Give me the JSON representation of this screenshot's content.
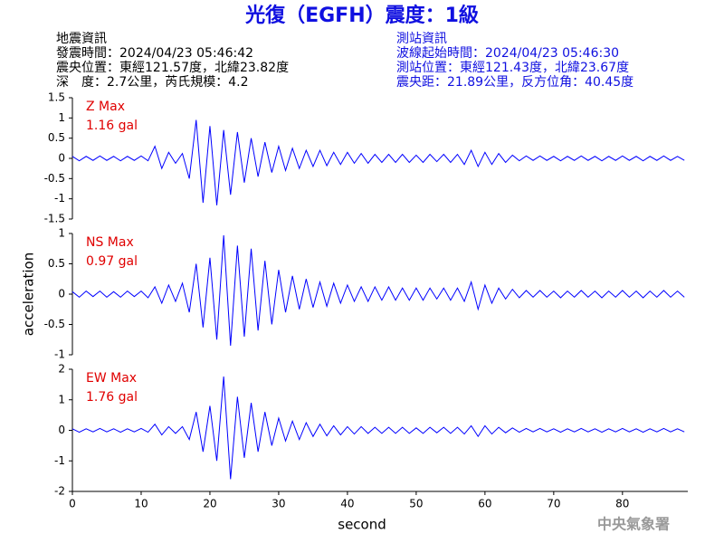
{
  "header": {
    "title": "光復（EGFH）震度：1級",
    "left": [
      "地震資訊",
      "發震時間：2024/04/23 05:46:42",
      "震央位置：東經121.57度，北緯23.82度",
      "深　度：2.7公里，芮氏規模：4.2"
    ],
    "right": [
      "測站資訊",
      "波線起始時間：2024/04/23 05:46:30",
      "測站位置：東經121.43度，北緯23.67度",
      "震央距：21.89公里，反方位角：40.45度"
    ]
  },
  "watermark": "中央氣象署",
  "chart_data": [
    {
      "type": "line",
      "annotations": [
        "Z Max",
        "1.16 gal"
      ],
      "xlim": [
        0,
        89.5
      ],
      "ylim": [
        -1.5,
        1.5
      ],
      "yticks": [
        -1.5,
        -1,
        -0.5,
        0,
        0.5,
        1,
        1.5
      ],
      "x": [
        0,
        1,
        2,
        3,
        4,
        5,
        6,
        7,
        8,
        9,
        10,
        11,
        12,
        13,
        14,
        15,
        16,
        17,
        18,
        19,
        20,
        21,
        22,
        23,
        24,
        25,
        26,
        27,
        28,
        29,
        30,
        31,
        32,
        33,
        34,
        35,
        36,
        37,
        38,
        39,
        40,
        41,
        42,
        43,
        44,
        45,
        46,
        47,
        48,
        49,
        50,
        51,
        52,
        53,
        54,
        55,
        56,
        57,
        58,
        59,
        60,
        61,
        62,
        63,
        64,
        65,
        66,
        67,
        68,
        69,
        70,
        71,
        72,
        73,
        74,
        75,
        76,
        77,
        78,
        79,
        80,
        81,
        82,
        83,
        84,
        85,
        86,
        87,
        88,
        89
      ],
      "series": [
        {
          "color": "#0000ff",
          "values": [
            0.05,
            -0.06,
            0.05,
            -0.05,
            0.06,
            -0.05,
            0.05,
            -0.06,
            0.05,
            -0.05,
            0.06,
            -0.06,
            0.3,
            -0.25,
            0.15,
            -0.12,
            0.12,
            -0.5,
            0.95,
            -1.1,
            0.8,
            -1.16,
            0.7,
            -0.9,
            0.65,
            -0.6,
            0.5,
            -0.45,
            0.4,
            -0.35,
            0.3,
            -0.3,
            0.25,
            -0.25,
            0.2,
            -0.2,
            0.2,
            -0.18,
            0.15,
            -0.15,
            0.15,
            -0.12,
            0.12,
            -0.12,
            0.1,
            -0.1,
            0.1,
            -0.1,
            0.1,
            -0.1,
            0.08,
            -0.1,
            0.1,
            -0.08,
            0.1,
            -0.1,
            0.1,
            -0.15,
            0.2,
            -0.2,
            0.15,
            -0.15,
            0.12,
            -0.1,
            0.08,
            -0.06,
            0.06,
            -0.05,
            0.06,
            -0.05,
            0.05,
            -0.06,
            0.05,
            -0.05,
            0.06,
            -0.05,
            0.05,
            -0.06,
            0.05,
            -0.05,
            0.06,
            -0.05,
            0.05,
            -0.06,
            0.05,
            -0.05,
            0.06,
            -0.05,
            0.05,
            -0.05
          ]
        }
      ]
    },
    {
      "type": "line",
      "annotations": [
        "NS Max",
        "0.97 gal"
      ],
      "ylabel": "acceleration",
      "xlim": [
        0,
        89.5
      ],
      "ylim": [
        -1,
        1
      ],
      "yticks": [
        -1,
        -0.5,
        0,
        0.5,
        1
      ],
      "x": [
        0,
        1,
        2,
        3,
        4,
        5,
        6,
        7,
        8,
        9,
        10,
        11,
        12,
        13,
        14,
        15,
        16,
        17,
        18,
        19,
        20,
        21,
        22,
        23,
        24,
        25,
        26,
        27,
        28,
        29,
        30,
        31,
        32,
        33,
        34,
        35,
        36,
        37,
        38,
        39,
        40,
        41,
        42,
        43,
        44,
        45,
        46,
        47,
        48,
        49,
        50,
        51,
        52,
        53,
        54,
        55,
        56,
        57,
        58,
        59,
        60,
        61,
        62,
        63,
        64,
        65,
        66,
        67,
        68,
        69,
        70,
        71,
        72,
        73,
        74,
        75,
        76,
        77,
        78,
        79,
        80,
        81,
        82,
        83,
        84,
        85,
        86,
        87,
        88,
        89
      ],
      "series": [
        {
          "color": "#0000ff",
          "values": [
            0.04,
            -0.05,
            0.05,
            -0.04,
            0.05,
            -0.05,
            0.04,
            -0.05,
            0.05,
            -0.04,
            0.05,
            -0.06,
            0.12,
            -0.15,
            0.15,
            -0.12,
            0.18,
            -0.3,
            0.5,
            -0.55,
            0.6,
            -0.75,
            0.97,
            -0.85,
            0.8,
            -0.7,
            0.75,
            -0.6,
            0.55,
            -0.5,
            0.4,
            -0.3,
            0.3,
            -0.25,
            0.25,
            -0.22,
            0.2,
            -0.2,
            0.18,
            -0.15,
            0.15,
            -0.12,
            0.12,
            -0.12,
            0.12,
            -0.1,
            0.12,
            -0.1,
            0.1,
            -0.1,
            0.1,
            -0.1,
            0.1,
            -0.08,
            0.1,
            -0.1,
            0.1,
            -0.12,
            0.2,
            -0.25,
            0.15,
            -0.15,
            0.1,
            -0.08,
            0.08,
            -0.06,
            0.06,
            -0.05,
            0.06,
            -0.05,
            0.05,
            -0.06,
            0.05,
            -0.05,
            0.06,
            -0.05,
            0.05,
            -0.06,
            0.05,
            -0.05,
            0.06,
            -0.05,
            0.05,
            -0.06,
            0.05,
            -0.05,
            0.06,
            -0.05,
            0.05,
            -0.05
          ]
        }
      ]
    },
    {
      "type": "line",
      "annotations": [
        "EW Max",
        "1.76 gal"
      ],
      "xlabel": "second",
      "xlim": [
        0,
        89.5
      ],
      "xticks": [
        0,
        10,
        20,
        30,
        40,
        50,
        60,
        70,
        80
      ],
      "ylim": [
        -2,
        2
      ],
      "yticks": [
        -2,
        -1,
        0,
        1,
        2
      ],
      "x": [
        0,
        1,
        2,
        3,
        4,
        5,
        6,
        7,
        8,
        9,
        10,
        11,
        12,
        13,
        14,
        15,
        16,
        17,
        18,
        19,
        20,
        21,
        22,
        23,
        24,
        25,
        26,
        27,
        28,
        29,
        30,
        31,
        32,
        33,
        34,
        35,
        36,
        37,
        38,
        39,
        40,
        41,
        42,
        43,
        44,
        45,
        46,
        47,
        48,
        49,
        50,
        51,
        52,
        53,
        54,
        55,
        56,
        57,
        58,
        59,
        60,
        61,
        62,
        63,
        64,
        65,
        66,
        67,
        68,
        69,
        70,
        71,
        72,
        73,
        74,
        75,
        76,
        77,
        78,
        79,
        80,
        81,
        82,
        83,
        84,
        85,
        86,
        87,
        88,
        89
      ],
      "series": [
        {
          "color": "#0000ff",
          "values": [
            0.05,
            -0.06,
            0.05,
            -0.05,
            0.06,
            -0.05,
            0.05,
            -0.06,
            0.05,
            -0.05,
            0.06,
            -0.06,
            0.2,
            -0.15,
            0.12,
            -0.1,
            0.12,
            -0.3,
            0.6,
            -0.7,
            0.8,
            -1.0,
            1.76,
            -1.6,
            1.1,
            -0.9,
            0.9,
            -0.7,
            0.6,
            -0.5,
            0.4,
            -0.35,
            0.3,
            -0.3,
            0.25,
            -0.2,
            0.2,
            -0.18,
            0.15,
            -0.15,
            0.12,
            -0.12,
            0.12,
            -0.1,
            0.1,
            -0.1,
            0.1,
            -0.1,
            0.1,
            -0.1,
            0.08,
            -0.1,
            0.1,
            -0.08,
            0.1,
            -0.1,
            0.1,
            -0.12,
            0.15,
            -0.2,
            0.15,
            -0.12,
            0.1,
            -0.08,
            0.08,
            -0.06,
            0.06,
            -0.05,
            0.06,
            -0.05,
            0.05,
            -0.06,
            0.05,
            -0.05,
            0.06,
            -0.05,
            0.05,
            -0.06,
            0.05,
            -0.05,
            0.06,
            -0.05,
            0.05,
            -0.06,
            0.05,
            -0.05,
            0.06,
            -0.05,
            0.05,
            -0.05
          ]
        }
      ]
    }
  ]
}
